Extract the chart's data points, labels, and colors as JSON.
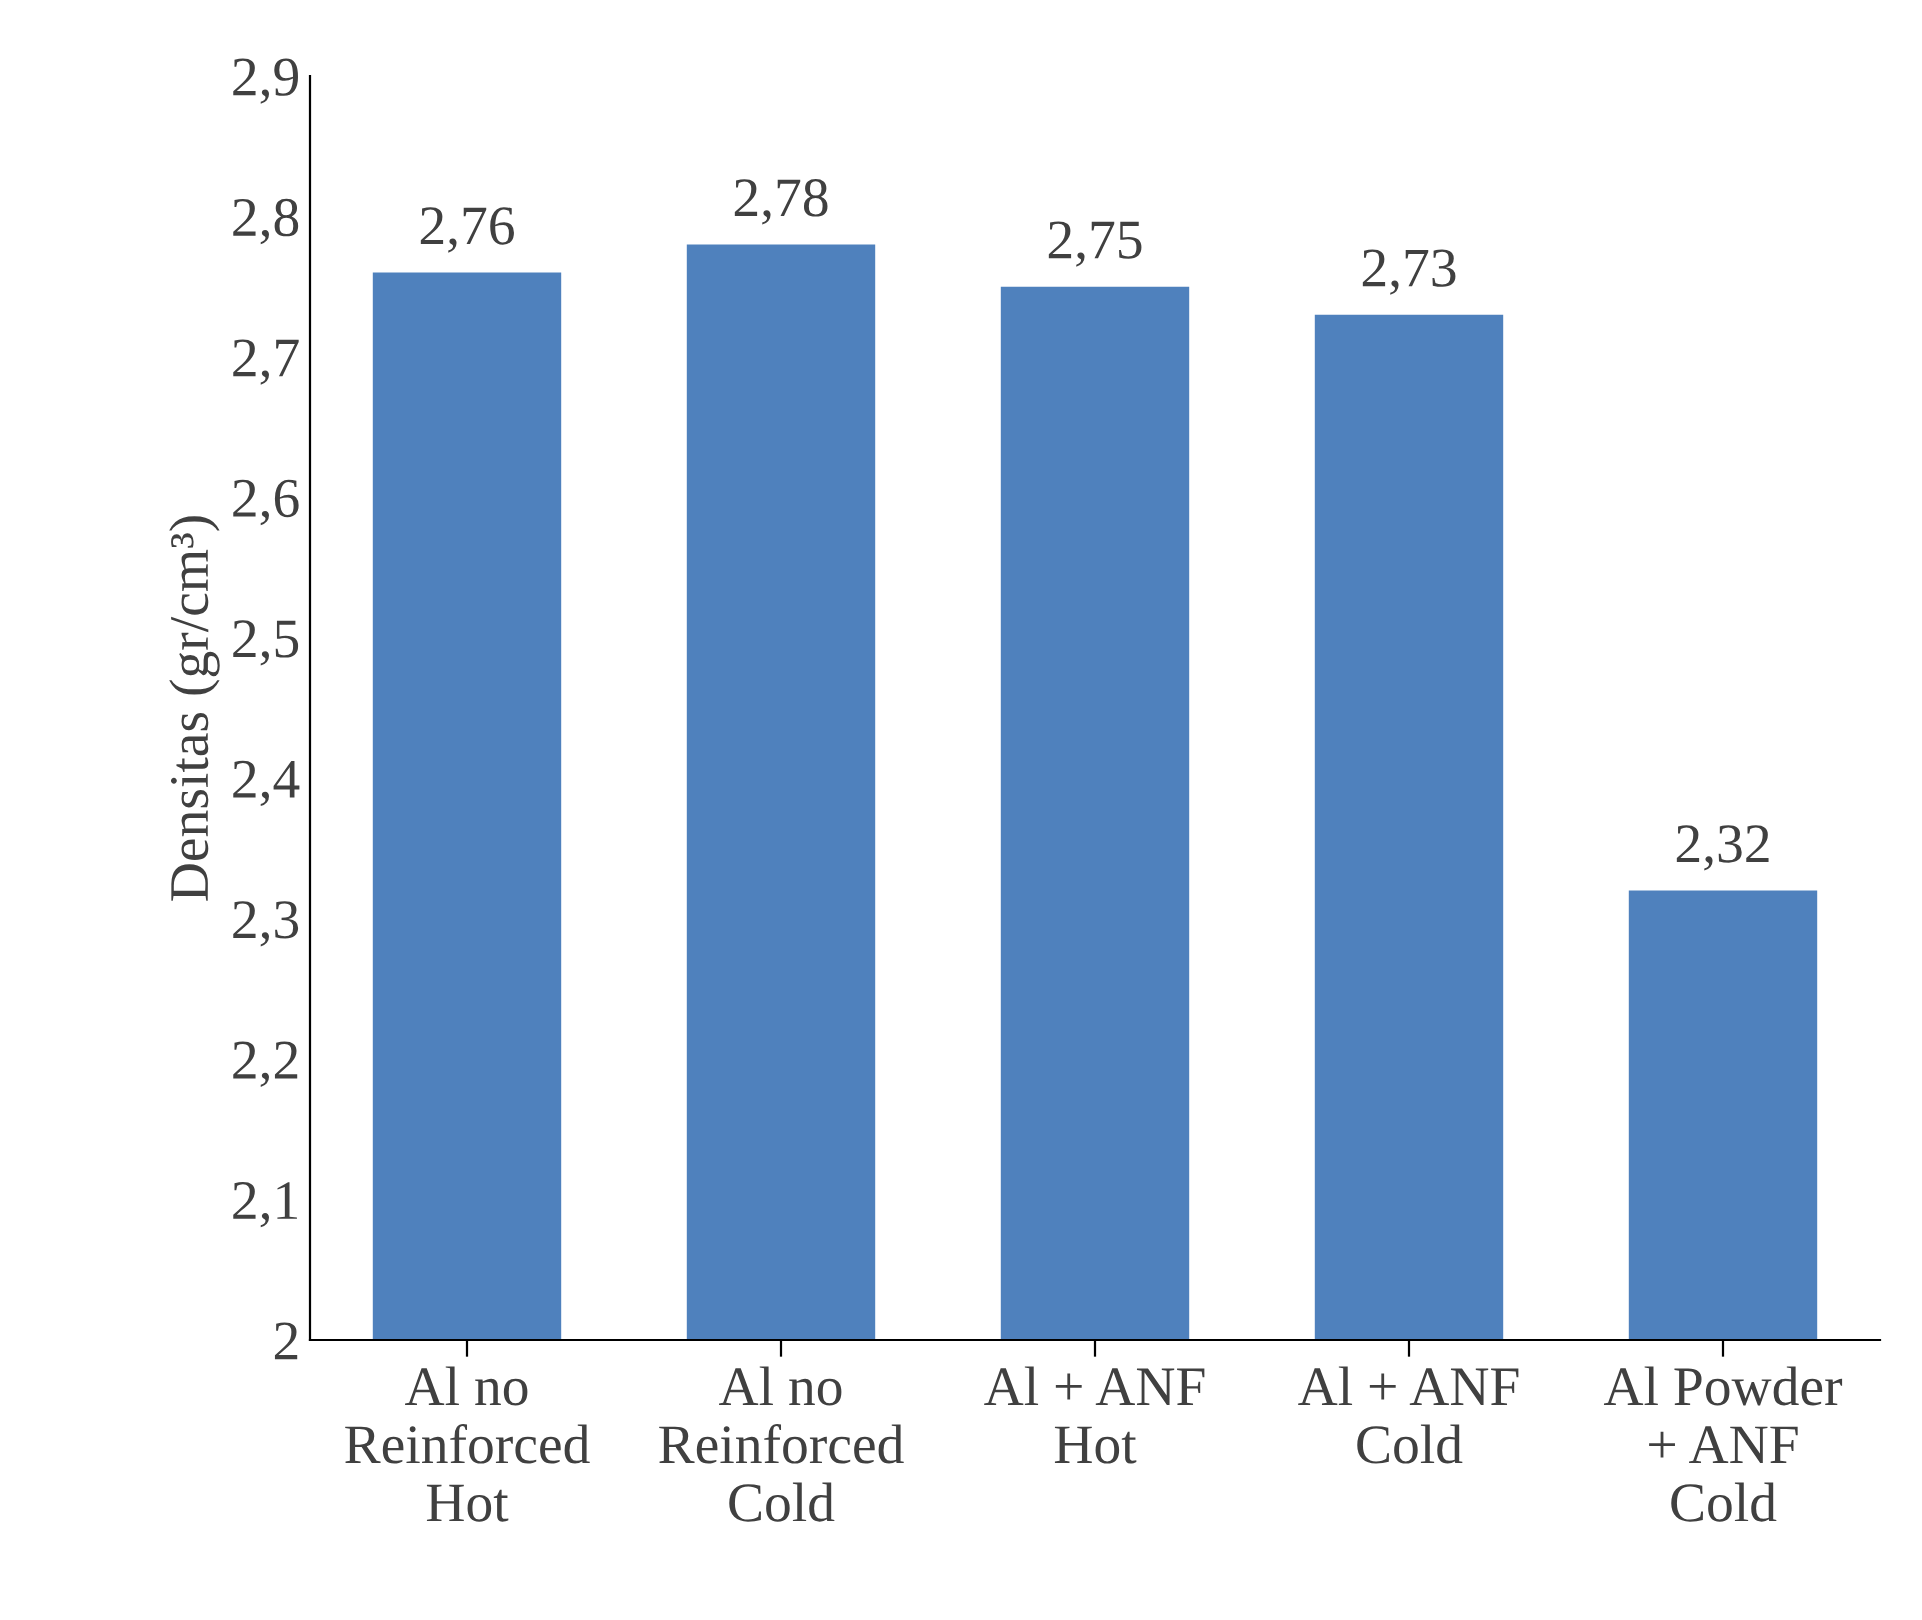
{
  "chart_data": {
    "type": "bar",
    "ylabel": "Densitas (gr/cm³)",
    "categories": [
      "Al no\nReinforced\nHot",
      "Al no\nReinforced\nCold",
      "Al + ANF\nHot",
      "Al + ANF\nCold",
      "Al Powder\n+ ANF\nCold"
    ],
    "values": [
      2.76,
      2.78,
      2.75,
      2.73,
      2.32
    ],
    "value_labels": [
      "2,76",
      "2,78",
      "2,75",
      "2,73",
      "2,32"
    ],
    "color": "#4f81bd",
    "ylim": [
      2,
      2.9
    ],
    "yticks": [
      2,
      {
        "value": 2.1,
        "label": "2,1"
      },
      {
        "value": 2.2,
        "label": "2,2"
      },
      {
        "value": 2.3,
        "label": "2,3"
      },
      {
        "value": 2.4,
        "label": "2,4"
      },
      {
        "value": 2.5,
        "label": "2,5"
      },
      {
        "value": 2.6,
        "label": "2,6"
      },
      {
        "value": 2.7,
        "label": "2,7"
      },
      {
        "value": 2.8,
        "label": "2,8"
      },
      {
        "value": 2.9,
        "label": "2,9"
      }
    ],
    "grid": false,
    "legend": false
  }
}
